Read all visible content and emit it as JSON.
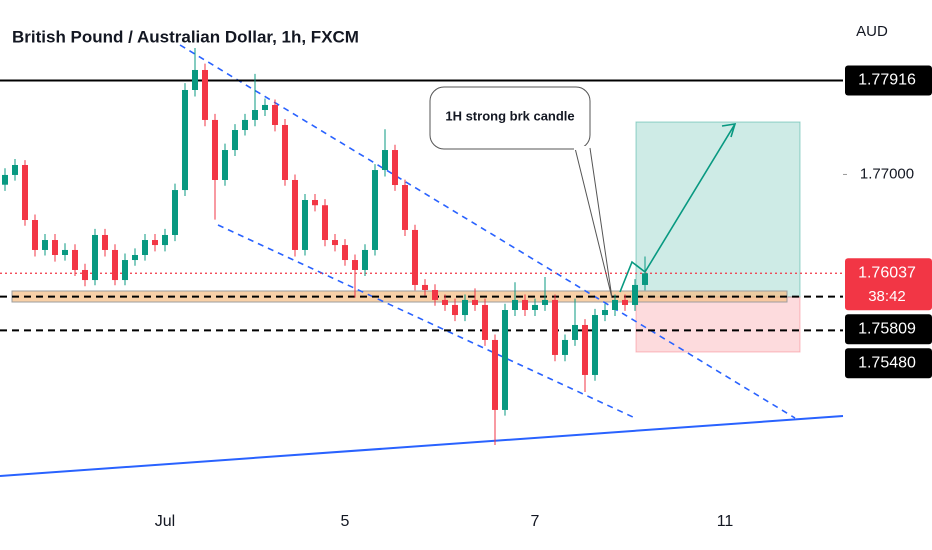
{
  "chart_data": {
    "type": "candlestick",
    "title": "British Pound / Australian Dollar, 1h, FXCM",
    "y_axis_label": "AUD",
    "up_color": "#089981",
    "down_color": "#f23645",
    "categories": [
      null,
      null,
      null,
      null,
      null,
      null,
      null,
      null,
      null,
      null,
      null,
      null,
      null,
      null,
      null,
      null,
      "Jul",
      null,
      null,
      null,
      null,
      null,
      null,
      null,
      null,
      null,
      null,
      null,
      null,
      null,
      null,
      null,
      null,
      null,
      "5",
      null,
      null,
      null,
      null,
      null,
      null,
      null,
      null,
      null,
      null,
      null,
      null,
      null,
      null,
      null,
      null,
      null,
      null,
      "7",
      null,
      null,
      null,
      null,
      null,
      null,
      null,
      null,
      null,
      null,
      null,
      null,
      null,
      null,
      null,
      null,
      null,
      null,
      "11",
      null,
      null,
      null,
      null,
      null,
      null,
      null,
      null,
      null,
      null,
      null
    ],
    "open": [
      1.769,
      1.76995,
      1.77092,
      1.76556,
      1.76264,
      1.76361,
      1.76215,
      1.76264,
      1.76069,
      1.75971,
      1.7641,
      1.76264,
      1.75971,
      1.76166,
      1.76215,
      1.76361,
      1.76312,
      1.7641,
      1.76848,
      1.77823,
      1.78018,
      1.77531,
      1.76946,
      1.77238,
      1.77433,
      1.77531,
      1.77628,
      1.77677,
      1.77482,
      1.76946,
      1.76264,
      1.76751,
      1.767,
      1.76361,
      1.76312,
      1.76166,
      1.76069,
      1.76264,
      1.77043,
      1.77238,
      1.76897,
      1.76459,
      1.75923,
      1.75874,
      1.75777,
      1.75728,
      1.7563,
      1.75777,
      1.75728,
      1.75387,
      1.74705,
      1.75679,
      1.75777,
      1.75679,
      1.75728,
      1.75777,
      1.75241,
      1.75387,
      1.75533,
      1.75046,
      1.7563,
      1.75679,
      1.75777,
      1.75728,
      1.75923,
      null,
      null,
      null,
      null,
      null,
      null,
      null,
      null,
      null,
      null,
      null,
      null,
      null,
      null,
      null,
      null,
      null,
      null,
      null
    ],
    "high": [
      1.7706,
      1.7715,
      1.7714,
      1.7661,
      1.7642,
      1.7642,
      1.7633,
      1.7632,
      1.7613,
      1.7647,
      1.7647,
      1.7632,
      1.7623,
      1.7628,
      1.7642,
      1.7642,
      1.7647,
      1.7691,
      1.7789,
      1.78232,
      1.7808,
      1.7759,
      1.773,
      1.7749,
      1.7759,
      1.7798,
      1.7774,
      1.7773,
      1.7754,
      1.77,
      1.7681,
      1.7681,
      1.7676,
      1.7642,
      1.7637,
      1.7622,
      1.7632,
      1.771,
      1.7744,
      1.7729,
      1.7695,
      1.7651,
      1.7598,
      1.7593,
      1.7583,
      1.7579,
      1.7583,
      1.7589,
      1.7579,
      1.7544,
      1.7574,
      1.7595,
      1.7583,
      1.7579,
      1.76,
      1.7583,
      1.7544,
      1.7579,
      1.7559,
      1.7569,
      1.7574,
      1.7583,
      1.7583,
      1.7598,
      1.762,
      null,
      null,
      null,
      null,
      null,
      null,
      null,
      null,
      null,
      null,
      null,
      null,
      null,
      null,
      null,
      null,
      null,
      null,
      null
    ],
    "low": [
      1.7684,
      1.7694,
      1.765,
      1.762,
      1.7621,
      1.7615,
      1.7616,
      1.7601,
      1.7591,
      1.7592,
      1.762,
      1.7592,
      1.7592,
      1.7611,
      1.7616,
      1.7625,
      1.7625,
      1.7635,
      1.7679,
      1.7776,
      1.7747,
      1.7656,
      1.7689,
      1.7718,
      1.7738,
      1.7747,
      1.7757,
      1.7742,
      1.7689,
      1.762,
      1.7621,
      1.7664,
      1.763,
      1.7625,
      1.7611,
      1.758,
      1.7601,
      1.7621,
      1.7698,
      1.7684,
      1.764,
      1.7587,
      1.7582,
      1.7572,
      1.7567,
      1.7557,
      1.7557,
      1.7567,
      1.7533,
      1.74363,
      1.7465,
      1.7562,
      1.7562,
      1.7562,
      1.7567,
      1.7518,
      1.7518,
      1.7533,
      1.7488,
      1.7499,
      1.7557,
      1.7562,
      1.7567,
      1.7567,
      1.7587,
      null,
      null,
      null,
      null,
      null,
      null,
      null,
      null,
      null,
      null,
      null,
      null,
      null,
      null,
      null,
      null,
      null,
      null,
      null
    ],
    "close": [
      1.76995,
      1.77092,
      1.76556,
      1.76264,
      1.76361,
      1.76215,
      1.76264,
      1.76069,
      1.75971,
      1.7641,
      1.76264,
      1.75971,
      1.76166,
      1.76215,
      1.76361,
      1.76312,
      1.7641,
      1.76848,
      1.77823,
      1.78018,
      1.77531,
      1.76946,
      1.77238,
      1.77433,
      1.77531,
      1.77628,
      1.77677,
      1.77482,
      1.76946,
      1.76264,
      1.76751,
      1.767,
      1.76361,
      1.76312,
      1.76166,
      1.76069,
      1.76264,
      1.77043,
      1.77238,
      1.76897,
      1.76459,
      1.75923,
      1.75874,
      1.75777,
      1.75728,
      1.7563,
      1.75777,
      1.75728,
      1.75387,
      1.74705,
      1.75679,
      1.75777,
      1.75679,
      1.75728,
      1.75777,
      1.75241,
      1.75387,
      1.75533,
      1.75046,
      1.7563,
      1.75679,
      1.75777,
      1.75728,
      1.75923,
      1.76037,
      null,
      null,
      null,
      null,
      null,
      null,
      null,
      null,
      null,
      null,
      null,
      null,
      null,
      null,
      null,
      null,
      null,
      null,
      null
    ],
    "ylim": [
      1.7373,
      1.787
    ],
    "yticks": [
      {
        "value": 1.77,
        "label": "1.77000"
      }
    ],
    "grid": false,
    "price_lines": [
      {
        "value": 1.77916,
        "label": "1.77916",
        "style": "solid",
        "color": "#000000"
      },
      {
        "value": 1.76037,
        "label": "1.76037",
        "countdown": "38:42",
        "style": "dotted",
        "color": "#f23645"
      },
      {
        "value": 1.75809,
        "label": "1.75809",
        "style": "dashed",
        "color": "#000000"
      },
      {
        "value": 1.7548,
        "label": "1.75480",
        "style": "dashed",
        "color": "#000000"
      }
    ],
    "annotations": [
      "1H strong brk candle"
    ]
  }
}
